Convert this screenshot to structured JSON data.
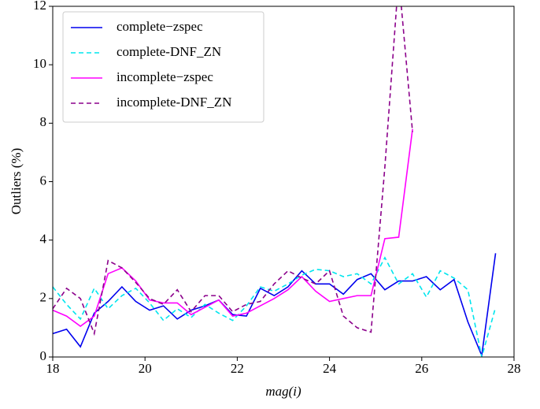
{
  "chart_data": {
    "type": "line",
    "xlabel": "mag(i)",
    "ylabel": "Outliers (%)",
    "x": [
      18,
      18.3,
      18.6,
      18.9,
      19.2,
      19.5,
      19.8,
      20.1,
      20.4,
      20.7,
      21.0,
      21.3,
      21.6,
      21.9,
      22.2,
      22.5,
      22.8,
      23.1,
      23.4,
      23.7,
      24.0,
      24.3,
      24.6,
      24.9,
      25.2,
      25.5,
      25.8,
      26.1,
      26.4,
      26.7,
      27.0,
      27.3,
      27.6
    ],
    "series": [
      {
        "name": "complete−zspec",
        "color": "#0000ee",
        "linestyle": "solid",
        "values": [
          0.8,
          0.95,
          0.35,
          1.5,
          1.9,
          2.4,
          1.9,
          1.6,
          1.75,
          1.3,
          1.6,
          1.75,
          1.95,
          1.45,
          1.4,
          2.35,
          2.1,
          2.4,
          2.95,
          2.5,
          2.5,
          2.15,
          2.65,
          2.85,
          2.3,
          2.6,
          2.6,
          2.75,
          2.3,
          2.65,
          1.2,
          0.05,
          3.55
        ]
      },
      {
        "name": "complete-DNF_ZN",
        "color": "#00e5ee",
        "linestyle": "dashed",
        "values": [
          2.4,
          1.8,
          1.3,
          2.35,
          1.65,
          2.1,
          2.35,
          1.85,
          1.25,
          1.65,
          1.35,
          1.8,
          1.5,
          1.25,
          1.75,
          2.4,
          2.25,
          2.5,
          2.8,
          3.0,
          2.95,
          2.75,
          2.85,
          2.5,
          3.4,
          2.5,
          2.85,
          2.05,
          2.95,
          2.7,
          2.3,
          0.0,
          1.7
        ]
      },
      {
        "name": "incomplete−zspec",
        "color": "#ff00ff",
        "linestyle": "solid",
        "values": [
          1.6,
          1.4,
          1.05,
          1.4,
          2.85,
          3.05,
          2.6,
          1.95,
          1.85,
          1.85,
          1.45,
          1.7,
          1.95,
          1.4,
          1.5,
          1.75,
          2.0,
          2.3,
          2.75,
          2.25,
          1.9,
          2.0,
          2.1,
          2.1,
          4.05,
          4.1,
          7.8,
          null,
          null,
          null,
          null,
          null,
          null
        ]
      },
      {
        "name": "incomplete-DNF_ZN",
        "color": "#8b008b",
        "linestyle": "dashed",
        "values": [
          1.65,
          2.35,
          2.0,
          0.8,
          3.3,
          3.05,
          2.55,
          2.0,
          1.8,
          2.3,
          1.55,
          2.1,
          2.1,
          1.55,
          1.8,
          1.9,
          2.5,
          2.95,
          2.7,
          2.5,
          2.95,
          1.4,
          1.0,
          0.85,
          6.5,
          13,
          7.7,
          null,
          null,
          null,
          null,
          null,
          null
        ]
      }
    ],
    "xlim": [
      18,
      28
    ],
    "xticks": [
      18,
      20,
      22,
      24,
      26,
      28
    ],
    "ylim": [
      0,
      12
    ],
    "yticks": [
      0,
      2,
      4,
      6,
      8,
      10,
      12
    ],
    "legend": "upper left"
  }
}
